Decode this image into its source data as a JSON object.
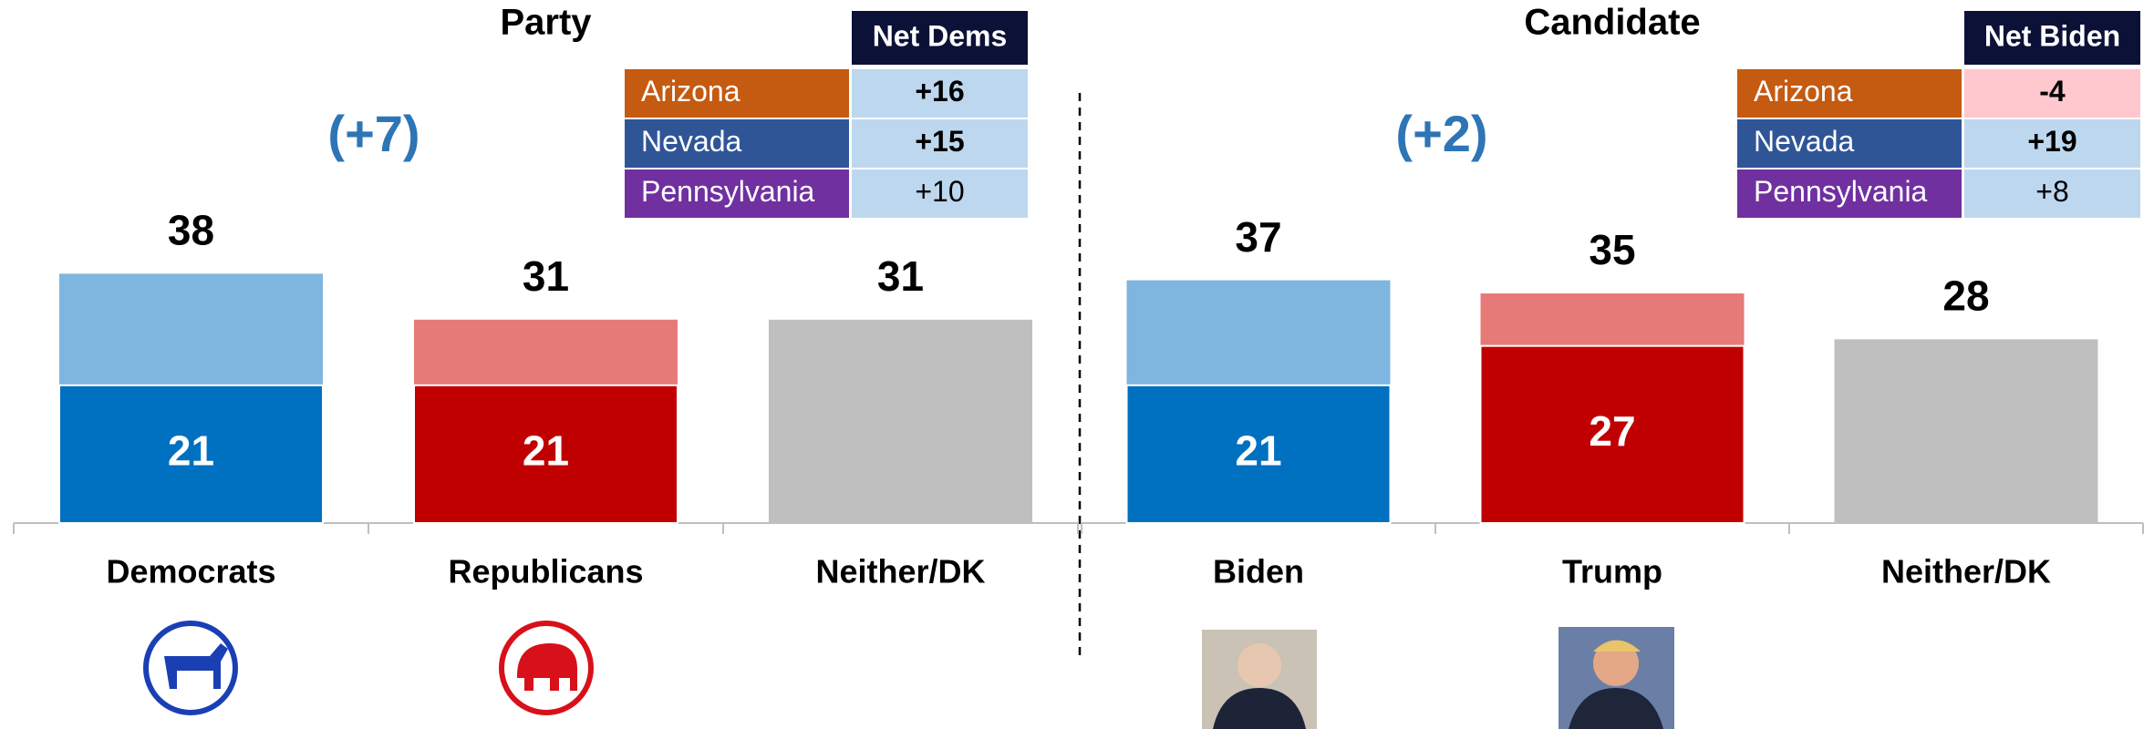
{
  "chart_data": [
    {
      "type": "bar",
      "title": "Party",
      "annotation": "(+7)",
      "categories": [
        "Democrats",
        "Republicans",
        "Neither/DK"
      ],
      "series": [
        {
          "values": [
            38,
            31,
            31
          ],
          "colors": [
            "#7eb6e0",
            "#e57a78",
            "#bfbfbf"
          ]
        },
        {
          "values": [
            21,
            21,
            null
          ],
          "colors": [
            "#0070c0",
            "#c00000",
            "#bfbfbf"
          ]
        }
      ],
      "ylim": [
        0,
        50
      ],
      "table": {
        "header": "Net Dems",
        "rows": [
          {
            "label": "Arizona",
            "value": "+16",
            "label_color": "#c55a11",
            "cell_color": "#bdd7ee",
            "bold": true
          },
          {
            "label": "Nevada",
            "value": "+15",
            "label_color": "#2f5597",
            "cell_color": "#bdd7ee",
            "bold": true
          },
          {
            "label": "Pennsylvania",
            "value": "+10",
            "label_color": "#7030a0",
            "cell_color": "#bdd7ee",
            "bold": false
          }
        ]
      }
    },
    {
      "type": "bar",
      "title": "Candidate",
      "annotation": "(+2)",
      "categories": [
        "Biden",
        "Trump",
        "Neither/DK"
      ],
      "series": [
        {
          "values": [
            37,
            35,
            28
          ],
          "colors": [
            "#7eb6e0",
            "#e57a78",
            "#bfbfbf"
          ]
        },
        {
          "values": [
            21,
            27,
            null
          ],
          "colors": [
            "#0070c0",
            "#c00000",
            "#bfbfbf"
          ]
        }
      ],
      "ylim": [
        0,
        50
      ],
      "table": {
        "header": "Net Biden",
        "rows": [
          {
            "label": "Arizona",
            "value": "-4",
            "label_color": "#c55a11",
            "cell_color": "#ffc7ce",
            "bold": true
          },
          {
            "label": "Nevada",
            "value": "+19",
            "label_color": "#2f5597",
            "cell_color": "#bdd7ee",
            "bold": true
          },
          {
            "label": "Pennsylvania",
            "value": "+8",
            "label_color": "#7030a0",
            "cell_color": "#bdd7ee",
            "bold": false
          }
        ]
      }
    }
  ]
}
